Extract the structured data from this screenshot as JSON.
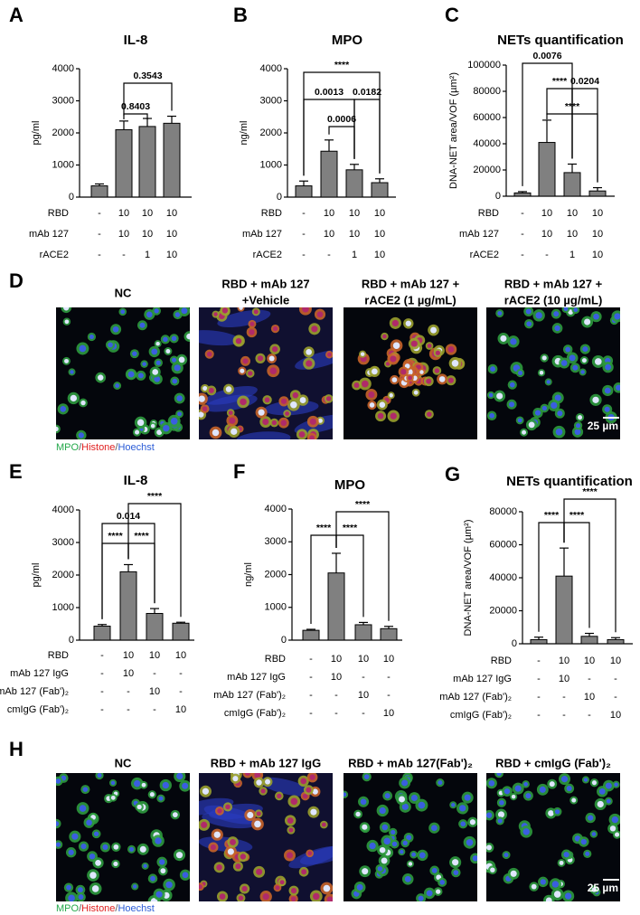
{
  "panel_letters": [
    "A",
    "B",
    "C",
    "D",
    "E",
    "F",
    "G",
    "H"
  ],
  "image_panels": [
    {
      "titles": [
        [
          "NC"
        ],
        [
          "RBD + mAb 127",
          "+Vehicle"
        ],
        [
          "RBD + mAb 127 +",
          "rACE2 (1 µg/mL)"
        ],
        [
          "RBD + mAb 127 +",
          "rACE2 (10 µg/mL)"
        ]
      ],
      "legend": [
        "MPO",
        "Histone",
        "Hoechst"
      ],
      "separator": "/",
      "scale_bar": "25 µm"
    },
    {
      "titles": [
        [
          "NC"
        ],
        [
          "RBD + mAb 127 IgG"
        ],
        [
          "RBD + mAb 127(Fab')₂"
        ],
        [
          "RBD + cmIgG (Fab')₂"
        ]
      ],
      "legend": [
        "MPO",
        "Histone",
        "Hoechst"
      ],
      "separator": "/",
      "scale_bar": "25 µm"
    }
  ],
  "chart_data": [
    {
      "type": "bar",
      "title": "IL-8",
      "ylabel": "pg/ml",
      "color": "#808080",
      "values": [
        350,
        2100,
        2200,
        2300
      ],
      "errors": [
        60,
        270,
        250,
        220
      ],
      "ylim": [
        0,
        4000
      ],
      "yticks": [
        0,
        1000,
        2000,
        3000,
        4000
      ],
      "comparisons": [
        {
          "label": "0.3543",
          "between": [
            1,
            3
          ]
        },
        {
          "label": "0.8403",
          "between": [
            1,
            2
          ]
        }
      ],
      "conditions": [
        {
          "name": "RBD",
          "values": [
            "-",
            "10",
            "10",
            "10"
          ]
        },
        {
          "name": "mAb 127",
          "values": [
            "-",
            "10",
            "10",
            "10"
          ]
        },
        {
          "name": "rACE2",
          "values": [
            "-",
            "-",
            "1",
            "10"
          ]
        }
      ]
    },
    {
      "type": "bar",
      "title": "MPO",
      "ylabel": "ng/ml",
      "color": "#808080",
      "values": [
        350,
        1430,
        850,
        450
      ],
      "errors": [
        150,
        350,
        170,
        120
      ],
      "ylim": [
        0,
        4000
      ],
      "yticks": [
        0,
        1000,
        2000,
        3000,
        4000
      ],
      "comparisons": [
        {
          "label": "****",
          "between": [
            0,
            3
          ]
        },
        {
          "label": "0.0013",
          "between": [
            0,
            2
          ]
        },
        {
          "label": "0.0182",
          "between": [
            2,
            3
          ]
        },
        {
          "label": "0.0006",
          "between": [
            1,
            2
          ]
        }
      ],
      "conditions": [
        {
          "name": "RBD",
          "values": [
            "-",
            "10",
            "10",
            "10"
          ]
        },
        {
          "name": "mAb 127",
          "values": [
            "-",
            "10",
            "10",
            "10"
          ]
        },
        {
          "name": "rACE2",
          "values": [
            "-",
            "-",
            "1",
            "10"
          ]
        }
      ]
    },
    {
      "type": "bar",
      "title": "NETs quantification",
      "ylabel": "DNA-NET area/VOF (µm²)",
      "color": "#808080",
      "values": [
        2500,
        41000,
        18000,
        4000
      ],
      "errors": [
        1000,
        17000,
        6500,
        2500
      ],
      "ylim": [
        0,
        100000
      ],
      "yticks": [
        0,
        20000,
        40000,
        60000,
        80000,
        100000
      ],
      "comparisons": [
        {
          "label": "0.0076",
          "between": [
            0,
            2
          ]
        },
        {
          "label": "****",
          "between": [
            1,
            2
          ]
        },
        {
          "label": "0.0204",
          "between": [
            2,
            3
          ]
        },
        {
          "label": "****",
          "between": [
            1,
            3
          ]
        }
      ],
      "conditions": [
        {
          "name": "RBD",
          "values": [
            "-",
            "10",
            "10",
            "10"
          ]
        },
        {
          "name": "mAb 127",
          "values": [
            "-",
            "10",
            "10",
            "10"
          ]
        },
        {
          "name": "rACE2",
          "values": [
            "-",
            "-",
            "1",
            "10"
          ]
        }
      ]
    },
    {
      "type": "bar",
      "title": "IL-8",
      "ylabel": "pg/ml",
      "color": "#808080",
      "values": [
        430,
        2100,
        820,
        520
      ],
      "errors": [
        50,
        220,
        150,
        30
      ],
      "ylim": [
        0,
        4000
      ],
      "yticks": [
        0,
        1000,
        2000,
        3000,
        4000
      ],
      "comparisons": [
        {
          "label": "****",
          "between": [
            1,
            3
          ]
        },
        {
          "label": "0.014",
          "between": [
            0,
            2
          ]
        },
        {
          "label": "****",
          "between": [
            0,
            1
          ]
        },
        {
          "label": "****",
          "between": [
            1,
            2
          ]
        }
      ],
      "conditions": [
        {
          "name": "RBD",
          "values": [
            "-",
            "10",
            "10",
            "10"
          ]
        },
        {
          "name": "mAb 127 IgG",
          "values": [
            "-",
            "10",
            "-",
            "-"
          ]
        },
        {
          "name": "mAb 127 (Fab')₂",
          "values": [
            "-",
            "-",
            "10",
            "-"
          ]
        },
        {
          "name": "cmIgG (Fab')₂",
          "values": [
            "-",
            "-",
            "-",
            "10"
          ]
        }
      ]
    },
    {
      "type": "bar",
      "title": "MPO",
      "ylabel": "ng/ml",
      "color": "#808080",
      "values": [
        300,
        2050,
        470,
        350
      ],
      "errors": [
        30,
        600,
        70,
        70
      ],
      "ylim": [
        0,
        4000
      ],
      "yticks": [
        0,
        1000,
        2000,
        3000,
        4000
      ],
      "comparisons": [
        {
          "label": "****",
          "between": [
            1,
            3
          ]
        },
        {
          "label": "****",
          "between": [
            0,
            1
          ]
        },
        {
          "label": "****",
          "between": [
            1,
            2
          ]
        }
      ],
      "conditions": [
        {
          "name": "RBD",
          "values": [
            "-",
            "10",
            "10",
            "10"
          ]
        },
        {
          "name": "mAb 127 IgG",
          "values": [
            "-",
            "10",
            "-",
            "-"
          ]
        },
        {
          "name": "mAb 127 (Fab')₂",
          "values": [
            "-",
            "-",
            "10",
            "-"
          ]
        },
        {
          "name": "cmIgG (Fab')₂",
          "values": [
            "-",
            "-",
            "-",
            "10"
          ]
        }
      ]
    },
    {
      "type": "bar",
      "title": "NETs quantification",
      "ylabel": "DNA-NET area/VOF (µm²)",
      "color": "#808080",
      "values": [
        2500,
        41000,
        4500,
        2500
      ],
      "errors": [
        1500,
        17000,
        1800,
        1200
      ],
      "ylim": [
        0,
        80000
      ],
      "yticks": [
        0,
        20000,
        40000,
        60000,
        80000
      ],
      "comparisons": [
        {
          "label": "****",
          "between": [
            1,
            3
          ]
        },
        {
          "label": "****",
          "between": [
            0,
            1
          ]
        },
        {
          "label": "****",
          "between": [
            1,
            2
          ]
        }
      ],
      "conditions": [
        {
          "name": "RBD",
          "values": [
            "-",
            "10",
            "10",
            "10"
          ]
        },
        {
          "name": "mAb 127 IgG",
          "values": [
            "-",
            "10",
            "-",
            "-"
          ]
        },
        {
          "name": "mAb 127 (Fab')₂",
          "values": [
            "-",
            "-",
            "10",
            "-"
          ]
        },
        {
          "name": "cmIgG (Fab')₂",
          "values": [
            "-",
            "-",
            "-",
            "10"
          ]
        }
      ]
    }
  ]
}
